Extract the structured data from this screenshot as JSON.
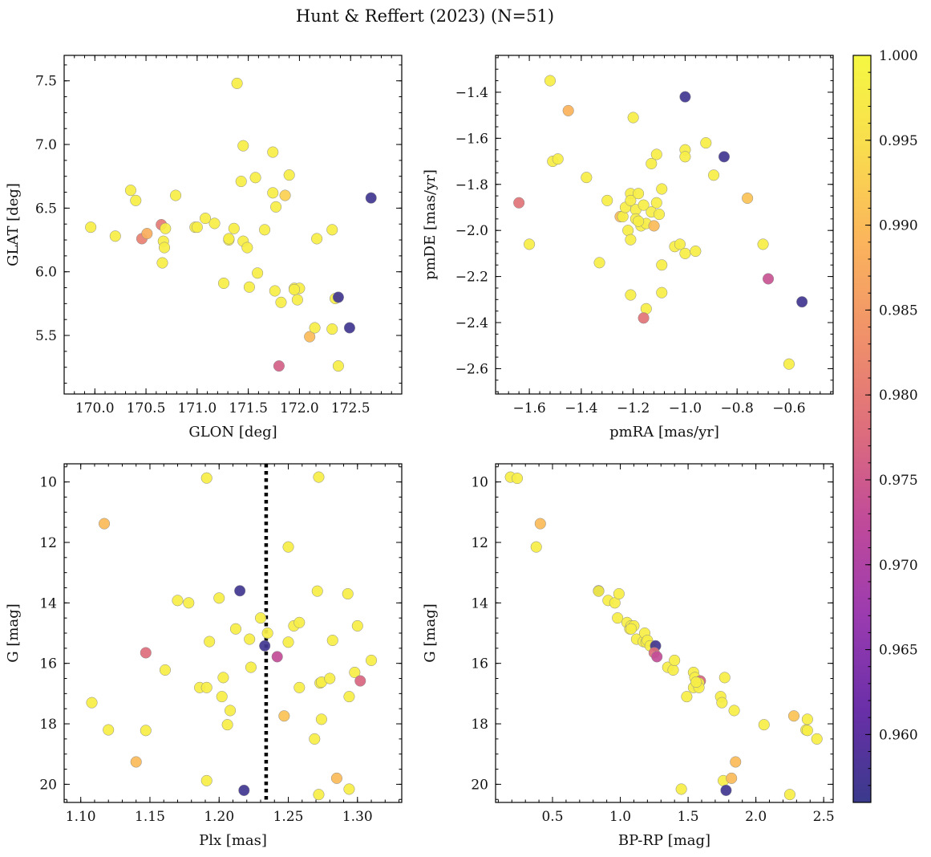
{
  "figure": {
    "title": "Hunt & Reffert (2023) (N=51)"
  },
  "colorbar": {
    "min": 0.956,
    "max": 1.0,
    "ticks": [
      "0.960",
      "0.965",
      "0.970",
      "0.975",
      "0.980",
      "0.985",
      "0.990",
      "0.995",
      "1.000"
    ],
    "tick_values": [
      0.96,
      0.965,
      0.97,
      0.975,
      0.98,
      0.985,
      0.99,
      0.995,
      1.0
    ],
    "colormap": [
      "#3a3a8c",
      "#6a2fa8",
      "#9b3bb0",
      "#c04a9a",
      "#de6e7c",
      "#f0916a",
      "#fbb45c",
      "#f9dc4e",
      "#f5f842"
    ]
  },
  "chart_data": [
    {
      "type": "scatter",
      "name": "panel-glon-glat",
      "xlabel": "GLON [deg]",
      "ylabel": "GLAT [deg]",
      "xlim": [
        169.7,
        173.0
      ],
      "ylim": [
        5.04,
        7.7
      ],
      "invert_y": false,
      "xticks": [
        170.0,
        170.5,
        171.0,
        171.5,
        172.0,
        172.5
      ],
      "xtick_labels": [
        "170.0",
        "170.5",
        "171.0",
        "171.5",
        "172.0",
        "172.5"
      ],
      "yticks": [
        5.5,
        6.0,
        6.5,
        7.0,
        7.5
      ],
      "ytick_labels": [
        "5.5",
        "6.0",
        "6.5",
        "7.0",
        "7.5"
      ],
      "points": [
        [
          169.96,
          6.35,
          0.998
        ],
        [
          170.2,
          6.28,
          0.998
        ],
        [
          170.35,
          6.64,
          0.998
        ],
        [
          170.4,
          6.56,
          0.998
        ],
        [
          170.46,
          6.26,
          0.981
        ],
        [
          170.51,
          6.3,
          0.988
        ],
        [
          170.65,
          6.37,
          0.98
        ],
        [
          170.67,
          6.24,
          0.998
        ],
        [
          170.68,
          6.19,
          0.998
        ],
        [
          170.66,
          6.07,
          0.998
        ],
        [
          170.69,
          6.34,
          0.998
        ],
        [
          170.79,
          6.6,
          0.998
        ],
        [
          170.98,
          6.35,
          0.998
        ],
        [
          171.0,
          6.35,
          0.998
        ],
        [
          171.08,
          6.42,
          0.998
        ],
        [
          171.17,
          6.38,
          0.998
        ],
        [
          171.26,
          5.91,
          0.998
        ],
        [
          171.31,
          6.25,
          0.998
        ],
        [
          171.31,
          6.26,
          0.998
        ],
        [
          171.36,
          6.34,
          0.998
        ],
        [
          171.39,
          7.48,
          0.998
        ],
        [
          171.43,
          6.71,
          0.998
        ],
        [
          171.45,
          6.99,
          0.998
        ],
        [
          171.45,
          6.24,
          0.998
        ],
        [
          171.49,
          6.19,
          0.998
        ],
        [
          171.51,
          5.88,
          0.998
        ],
        [
          171.57,
          6.74,
          0.998
        ],
        [
          171.59,
          5.99,
          0.998
        ],
        [
          171.66,
          6.33,
          0.998
        ],
        [
          171.74,
          6.94,
          0.998
        ],
        [
          171.74,
          6.62,
          0.998
        ],
        [
          171.76,
          5.85,
          0.998
        ],
        [
          171.77,
          6.51,
          0.998
        ],
        [
          171.8,
          5.26,
          0.976
        ],
        [
          171.82,
          5.76,
          0.998
        ],
        [
          171.86,
          6.6,
          0.993
        ],
        [
          171.9,
          6.76,
          0.998
        ],
        [
          171.95,
          5.87,
          0.998
        ],
        [
          171.98,
          5.78,
          0.998
        ],
        [
          172.0,
          5.87,
          0.998
        ],
        [
          172.1,
          5.49,
          0.99
        ],
        [
          172.15,
          5.56,
          0.998
        ],
        [
          172.17,
          6.26,
          0.998
        ],
        [
          172.32,
          6.33,
          0.998
        ],
        [
          172.32,
          5.55,
          0.998
        ],
        [
          172.35,
          5.79,
          0.998
        ],
        [
          172.38,
          5.26,
          0.998
        ],
        [
          172.38,
          5.8,
          0.957
        ],
        [
          172.49,
          5.56,
          0.957
        ],
        [
          172.7,
          6.58,
          0.957
        ],
        [
          171.95,
          5.86,
          0.998
        ]
      ]
    },
    {
      "type": "scatter",
      "name": "panel-pmra-pmde",
      "xlabel": "pmRA [mas/yr]",
      "ylabel": "pmDE [mas/yr]",
      "xlim": [
        -1.73,
        -0.43
      ],
      "ylim": [
        -2.71,
        -1.24
      ],
      "invert_y": false,
      "xticks": [
        -1.6,
        -1.4,
        -1.2,
        -1.0,
        -0.8,
        -0.6
      ],
      "xtick_labels": [
        "−1.6",
        "−1.4",
        "−1.2",
        "−1.0",
        "−0.8",
        "−0.6"
      ],
      "yticks": [
        -2.6,
        -2.4,
        -2.2,
        -2.0,
        -1.8,
        -1.6,
        -1.4
      ],
      "ytick_labels": [
        "−2.6",
        "−2.4",
        "−2.2",
        "−2.0",
        "−1.8",
        "−1.6",
        "−1.4"
      ],
      "points": [
        [
          -1.64,
          -1.88,
          0.979
        ],
        [
          -1.6,
          -2.06,
          0.998
        ],
        [
          -1.52,
          -1.35,
          0.998
        ],
        [
          -1.51,
          -1.7,
          0.998
        ],
        [
          -1.49,
          -1.69,
          0.998
        ],
        [
          -1.45,
          -1.48,
          0.989
        ],
        [
          -1.38,
          -1.77,
          0.998
        ],
        [
          -1.33,
          -2.14,
          0.998
        ],
        [
          -1.3,
          -1.87,
          0.998
        ],
        [
          -1.25,
          -1.94,
          0.99
        ],
        [
          -1.24,
          -1.94,
          0.998
        ],
        [
          -1.23,
          -1.9,
          0.998
        ],
        [
          -1.22,
          -2.0,
          0.998
        ],
        [
          -1.21,
          -1.84,
          0.998
        ],
        [
          -1.21,
          -1.87,
          0.998
        ],
        [
          -1.21,
          -2.04,
          0.998
        ],
        [
          -1.21,
          -2.28,
          0.998
        ],
        [
          -1.2,
          -1.51,
          0.998
        ],
        [
          -1.19,
          -1.91,
          0.998
        ],
        [
          -1.19,
          -1.95,
          0.998
        ],
        [
          -1.18,
          -1.84,
          0.998
        ],
        [
          -1.17,
          -1.98,
          0.998
        ],
        [
          -1.16,
          -1.89,
          0.998
        ],
        [
          -1.15,
          -1.97,
          0.998
        ],
        [
          -1.15,
          -2.34,
          0.998
        ],
        [
          -1.16,
          -2.38,
          0.979
        ],
        [
          -1.13,
          -1.92,
          0.998
        ],
        [
          -1.13,
          -1.71,
          0.998
        ],
        [
          -1.12,
          -1.98,
          0.99
        ],
        [
          -1.11,
          -1.67,
          0.998
        ],
        [
          -1.11,
          -1.88,
          0.998
        ],
        [
          -1.1,
          -1.93,
          0.998
        ],
        [
          -1.09,
          -1.82,
          0.998
        ],
        [
          -1.09,
          -2.15,
          0.998
        ],
        [
          -1.09,
          -2.27,
          0.998
        ],
        [
          -1.04,
          -2.07,
          0.998
        ],
        [
          -1.02,
          -2.06,
          0.998
        ],
        [
          -1.0,
          -2.1,
          0.998
        ],
        [
          -1.0,
          -1.65,
          0.998
        ],
        [
          -1.0,
          -1.68,
          0.998
        ],
        [
          -1.0,
          -1.42,
          0.957
        ],
        [
          -0.96,
          -2.09,
          0.998
        ],
        [
          -0.92,
          -1.62,
          0.998
        ],
        [
          -0.89,
          -1.76,
          0.998
        ],
        [
          -0.85,
          -1.68,
          0.957
        ],
        [
          -0.76,
          -1.86,
          0.991
        ],
        [
          -0.7,
          -2.06,
          0.998
        ],
        [
          -0.68,
          -2.21,
          0.974
        ],
        [
          -0.6,
          -2.58,
          0.998
        ],
        [
          -0.55,
          -2.31,
          0.957
        ],
        [
          -1.18,
          -1.96,
          0.998
        ]
      ]
    },
    {
      "type": "scatter",
      "name": "panel-plx-g",
      "xlabel": "Plx [mas]",
      "ylabel": "G [mag]",
      "xlim": [
        1.088,
        1.332
      ],
      "ylim": [
        20.6,
        9.4
      ],
      "invert_y": true,
      "vline": {
        "x": 1.234,
        "style": "dotted"
      },
      "xticks": [
        1.1,
        1.15,
        1.2,
        1.25,
        1.3
      ],
      "xtick_labels": [
        "1.10",
        "1.15",
        "1.20",
        "1.25",
        "1.30"
      ],
      "yticks": [
        10,
        12,
        14,
        16,
        18,
        20
      ],
      "ytick_labels": [
        "10",
        "12",
        "14",
        "16",
        "18",
        "20"
      ],
      "points": [
        [
          1.108,
          17.3,
          0.998
        ],
        [
          1.117,
          11.38,
          0.99
        ],
        [
          1.12,
          18.2,
          0.998
        ],
        [
          1.14,
          19.26,
          0.99
        ],
        [
          1.147,
          15.65,
          0.978
        ],
        [
          1.147,
          18.22,
          0.998
        ],
        [
          1.161,
          16.22,
          0.998
        ],
        [
          1.17,
          13.92,
          0.998
        ],
        [
          1.178,
          14.0,
          0.998
        ],
        [
          1.186,
          16.8,
          0.998
        ],
        [
          1.191,
          9.87,
          0.998
        ],
        [
          1.191,
          16.8,
          0.998
        ],
        [
          1.191,
          19.88,
          0.998
        ],
        [
          1.193,
          15.28,
          0.998
        ],
        [
          1.2,
          13.84,
          0.998
        ],
        [
          1.202,
          17.1,
          0.998
        ],
        [
          1.203,
          16.47,
          0.998
        ],
        [
          1.206,
          18.03,
          0.998
        ],
        [
          1.208,
          17.56,
          0.998
        ],
        [
          1.212,
          14.86,
          0.998
        ],
        [
          1.215,
          13.6,
          0.957
        ],
        [
          1.218,
          20.2,
          0.957
        ],
        [
          1.222,
          15.2,
          0.998
        ],
        [
          1.223,
          16.13,
          0.998
        ],
        [
          1.23,
          14.5,
          0.998
        ],
        [
          1.233,
          15.42,
          0.957
        ],
        [
          1.235,
          15.0,
          0.998
        ],
        [
          1.242,
          15.78,
          0.973
        ],
        [
          1.247,
          17.74,
          0.991
        ],
        [
          1.25,
          12.15,
          0.998
        ],
        [
          1.25,
          15.3,
          0.998
        ],
        [
          1.254,
          14.76,
          0.998
        ],
        [
          1.258,
          14.65,
          0.998
        ],
        [
          1.258,
          16.8,
          0.998
        ],
        [
          1.269,
          18.5,
          0.998
        ],
        [
          1.271,
          13.61,
          0.998
        ],
        [
          1.272,
          9.84,
          0.998
        ],
        [
          1.272,
          20.34,
          0.998
        ],
        [
          1.273,
          16.65,
          0.998
        ],
        [
          1.274,
          16.62,
          0.998
        ],
        [
          1.274,
          17.85,
          0.998
        ],
        [
          1.28,
          16.5,
          0.998
        ],
        [
          1.282,
          15.24,
          0.998
        ],
        [
          1.285,
          19.8,
          0.99
        ],
        [
          1.293,
          13.7,
          0.998
        ],
        [
          1.294,
          17.1,
          0.998
        ],
        [
          1.294,
          20.16,
          0.998
        ],
        [
          1.298,
          16.3,
          0.998
        ],
        [
          1.3,
          14.76,
          0.998
        ],
        [
          1.302,
          16.58,
          0.977
        ],
        [
          1.31,
          15.9,
          0.998
        ]
      ]
    },
    {
      "type": "scatter",
      "name": "panel-bprp-g",
      "xlabel": "BP-RP [mag]",
      "ylabel": "G [mag]",
      "xlim": [
        0.08,
        2.57
      ],
      "ylim": [
        20.6,
        9.4
      ],
      "invert_y": true,
      "xticks": [
        0.5,
        1.0,
        1.5,
        2.0,
        2.5
      ],
      "xtick_labels": [
        "0.5",
        "1.0",
        "1.5",
        "2.0",
        "2.5"
      ],
      "yticks": [
        10,
        12,
        14,
        16,
        18,
        20
      ],
      "ytick_labels": [
        "10",
        "12",
        "14",
        "16",
        "18",
        "20"
      ],
      "points": [
        [
          0.19,
          9.84,
          0.998
        ],
        [
          0.24,
          9.88,
          0.998
        ],
        [
          0.38,
          12.15,
          0.998
        ],
        [
          0.41,
          11.38,
          0.99
        ],
        [
          0.84,
          13.6,
          0.957
        ],
        [
          0.84,
          13.61,
          0.998
        ],
        [
          0.91,
          13.92,
          0.998
        ],
        [
          0.96,
          14.0,
          0.998
        ],
        [
          0.98,
          14.5,
          0.998
        ],
        [
          0.99,
          13.7,
          0.998
        ],
        [
          1.05,
          14.65,
          0.998
        ],
        [
          1.07,
          14.86,
          0.998
        ],
        [
          1.08,
          14.76,
          0.998
        ],
        [
          1.1,
          14.76,
          0.998
        ],
        [
          1.12,
          15.2,
          0.998
        ],
        [
          1.17,
          15.28,
          0.998
        ],
        [
          1.18,
          15.0,
          0.998
        ],
        [
          1.19,
          15.3,
          0.998
        ],
        [
          1.2,
          15.24,
          0.998
        ],
        [
          1.22,
          15.42,
          0.998
        ],
        [
          1.26,
          15.42,
          0.957
        ],
        [
          1.25,
          15.65,
          0.978
        ],
        [
          1.27,
          15.78,
          0.973
        ],
        [
          1.35,
          16.13,
          0.998
        ],
        [
          1.39,
          16.22,
          0.998
        ],
        [
          1.4,
          15.9,
          0.998
        ],
        [
          1.45,
          20.16,
          0.998
        ],
        [
          1.49,
          17.1,
          0.998
        ],
        [
          1.54,
          16.3,
          0.998
        ],
        [
          1.55,
          16.47,
          0.998
        ],
        [
          1.54,
          16.8,
          0.998
        ],
        [
          1.59,
          16.58,
          0.977
        ],
        [
          1.58,
          16.65,
          0.998
        ],
        [
          1.58,
          16.8,
          0.998
        ],
        [
          1.74,
          17.1,
          0.998
        ],
        [
          1.75,
          17.3,
          0.998
        ],
        [
          1.76,
          19.88,
          0.998
        ],
        [
          1.77,
          16.47,
          0.998
        ],
        [
          1.78,
          20.2,
          0.957
        ],
        [
          1.82,
          19.8,
          0.99
        ],
        [
          1.84,
          17.56,
          0.998
        ],
        [
          1.85,
          19.26,
          0.99
        ],
        [
          2.06,
          18.03,
          0.998
        ],
        [
          2.25,
          20.34,
          0.998
        ],
        [
          2.28,
          17.74,
          0.991
        ],
        [
          2.37,
          18.2,
          0.998
        ],
        [
          2.38,
          17.85,
          0.998
        ],
        [
          2.38,
          18.22,
          0.998
        ],
        [
          2.45,
          18.5,
          0.998
        ],
        [
          1.56,
          16.62,
          0.998
        ],
        [
          1.08,
          14.86,
          0.998
        ]
      ]
    }
  ]
}
